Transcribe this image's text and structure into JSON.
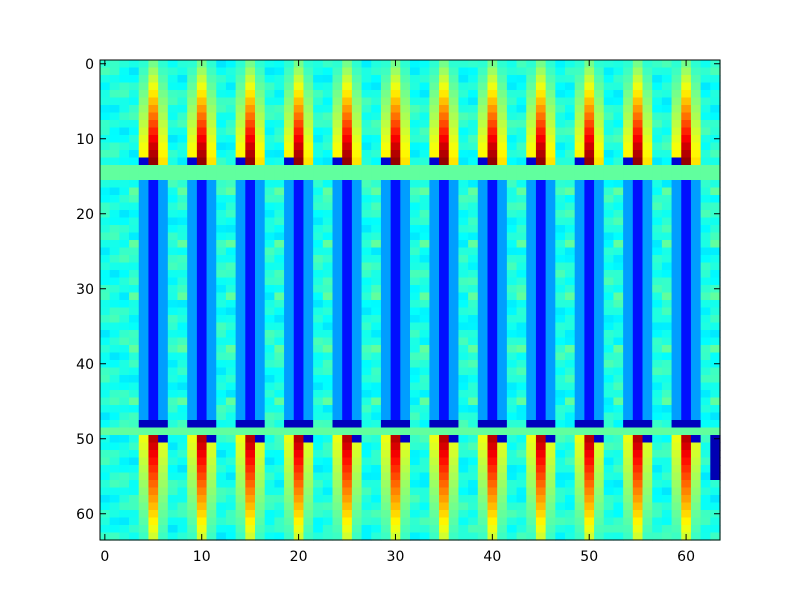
{
  "chart_data": {
    "type": "heatmap",
    "title": "",
    "xlabel": "",
    "ylabel": "",
    "colormap": "jet",
    "interpolation": "bilinear",
    "shape": [
      64,
      64
    ],
    "xlim": [
      -0.5,
      63.5
    ],
    "ylim": [
      63.5,
      -0.5
    ],
    "x_ticks": [
      0,
      10,
      20,
      30,
      40,
      50,
      60
    ],
    "y_ticks": [
      0,
      10,
      20,
      30,
      40,
      50,
      60
    ],
    "x_tick_labels": [
      "0",
      "10",
      "20",
      "30",
      "40",
      "50",
      "60"
    ],
    "y_tick_labels": [
      "0",
      "10",
      "20",
      "30",
      "40",
      "50",
      "60"
    ],
    "value_range": [
      0.0,
      1.0
    ],
    "bands": [
      {
        "rows": [
          0,
          14
        ],
        "pattern": "bright vertical streaks intensifying downward, peaking red near row 12"
      },
      {
        "rows": [
          15,
          48
        ],
        "pattern": "dark blue vertical streaks on a cyan-green background"
      },
      {
        "rows": [
          49,
          63
        ],
        "pattern": "red/yellow vertical streaks strongest near row 50, fading downward"
      }
    ],
    "horizontal_separators": [
      14.5,
      49
    ],
    "streak_columns": [
      5,
      10,
      15,
      20,
      25,
      30,
      35,
      40,
      45,
      50,
      55,
      60
    ],
    "background_value": 0.4
  }
}
